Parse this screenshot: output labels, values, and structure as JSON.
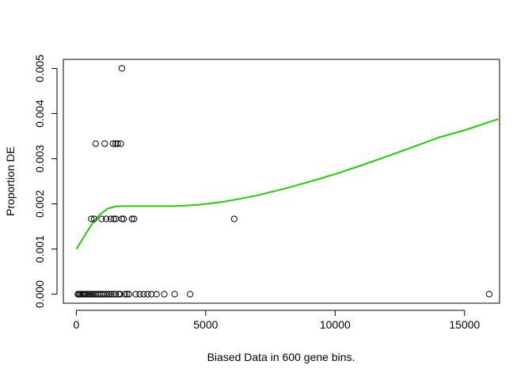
{
  "chart_data": {
    "type": "scatter",
    "title": "",
    "xlabel": "Biased Data in 600 gene bins.",
    "ylabel": "Proportion DE",
    "xlim": [
      -500,
      16350
    ],
    "ylim": [
      -0.0002,
      0.0052
    ],
    "x_ticks": [
      0,
      5000,
      10000,
      15000
    ],
    "x_tick_labels": [
      "0",
      "5000",
      "10000",
      "15000"
    ],
    "y_ticks": [
      0.0,
      0.001,
      0.002,
      0.003,
      0.004,
      0.005
    ],
    "y_tick_labels": [
      "0.000",
      "0.001",
      "0.002",
      "0.003",
      "0.004",
      "0.005"
    ],
    "grid": false,
    "legend": "none",
    "points": [
      {
        "x": 60,
        "y": 0
      },
      {
        "x": 100,
        "y": 0
      },
      {
        "x": 140,
        "y": 0
      },
      {
        "x": 190,
        "y": 0
      },
      {
        "x": 240,
        "y": 0
      },
      {
        "x": 290,
        "y": 0
      },
      {
        "x": 340,
        "y": 0
      },
      {
        "x": 400,
        "y": 0
      },
      {
        "x": 460,
        "y": 0
      },
      {
        "x": 520,
        "y": 0
      },
      {
        "x": 580,
        "y": 0
      },
      {
        "x": 640,
        "y": 0
      },
      {
        "x": 700,
        "y": 0
      },
      {
        "x": 760,
        "y": 0
      },
      {
        "x": 830,
        "y": 0
      },
      {
        "x": 900,
        "y": 0
      },
      {
        "x": 970,
        "y": 0
      },
      {
        "x": 1040,
        "y": 0
      },
      {
        "x": 1110,
        "y": 0
      },
      {
        "x": 1190,
        "y": 0
      },
      {
        "x": 1270,
        "y": 0
      },
      {
        "x": 1350,
        "y": 0
      },
      {
        "x": 1440,
        "y": 0
      },
      {
        "x": 1530,
        "y": 0
      },
      {
        "x": 1640,
        "y": 0
      },
      {
        "x": 1700,
        "y": 0
      },
      {
        "x": 1880,
        "y": 0
      },
      {
        "x": 1960,
        "y": 0
      },
      {
        "x": 2040,
        "y": 0
      },
      {
        "x": 2300,
        "y": 0
      },
      {
        "x": 2450,
        "y": 0
      },
      {
        "x": 2600,
        "y": 0
      },
      {
        "x": 2750,
        "y": 0
      },
      {
        "x": 2900,
        "y": 0
      },
      {
        "x": 3100,
        "y": 0
      },
      {
        "x": 3400,
        "y": 0
      },
      {
        "x": 3800,
        "y": 0
      },
      {
        "x": 4400,
        "y": 0
      },
      {
        "x": 15950,
        "y": 0
      },
      {
        "x": 580,
        "y": 0.001667
      },
      {
        "x": 690,
        "y": 0.001667
      },
      {
        "x": 980,
        "y": 0.001667
      },
      {
        "x": 1160,
        "y": 0.001667
      },
      {
        "x": 1330,
        "y": 0.001667
      },
      {
        "x": 1450,
        "y": 0.001667
      },
      {
        "x": 1530,
        "y": 0.001667
      },
      {
        "x": 1760,
        "y": 0.001667
      },
      {
        "x": 1830,
        "y": 0.001667
      },
      {
        "x": 2150,
        "y": 0.001667
      },
      {
        "x": 2230,
        "y": 0.001667
      },
      {
        "x": 6100,
        "y": 0.001667
      },
      {
        "x": 750,
        "y": 0.003333
      },
      {
        "x": 1100,
        "y": 0.003333
      },
      {
        "x": 1420,
        "y": 0.003333
      },
      {
        "x": 1520,
        "y": 0.003333
      },
      {
        "x": 1600,
        "y": 0.003333
      },
      {
        "x": 1720,
        "y": 0.003333
      },
      {
        "x": 1760,
        "y": 0.005
      }
    ],
    "series": [
      {
        "color": "#22cc00",
        "x": [
          0,
          300,
          600,
          900,
          1200,
          1500,
          1800,
          2200,
          2700,
          3200,
          3700,
          4200,
          4700,
          5200,
          5700,
          6200,
          7000,
          8000,
          9000,
          10000,
          11000,
          12000,
          13000,
          14000,
          15000,
          16300
        ],
        "y": [
          0.001,
          0.00128,
          0.00155,
          0.00176,
          0.00189,
          0.00194,
          0.00195,
          0.00195,
          0.00195,
          0.00195,
          0.00195,
          0.00196,
          0.00198,
          0.00201,
          0.00205,
          0.0021,
          0.00219,
          0.00233,
          0.00249,
          0.00266,
          0.00285,
          0.00305,
          0.00326,
          0.00347,
          0.00363,
          0.00388
        ]
      }
    ]
  }
}
